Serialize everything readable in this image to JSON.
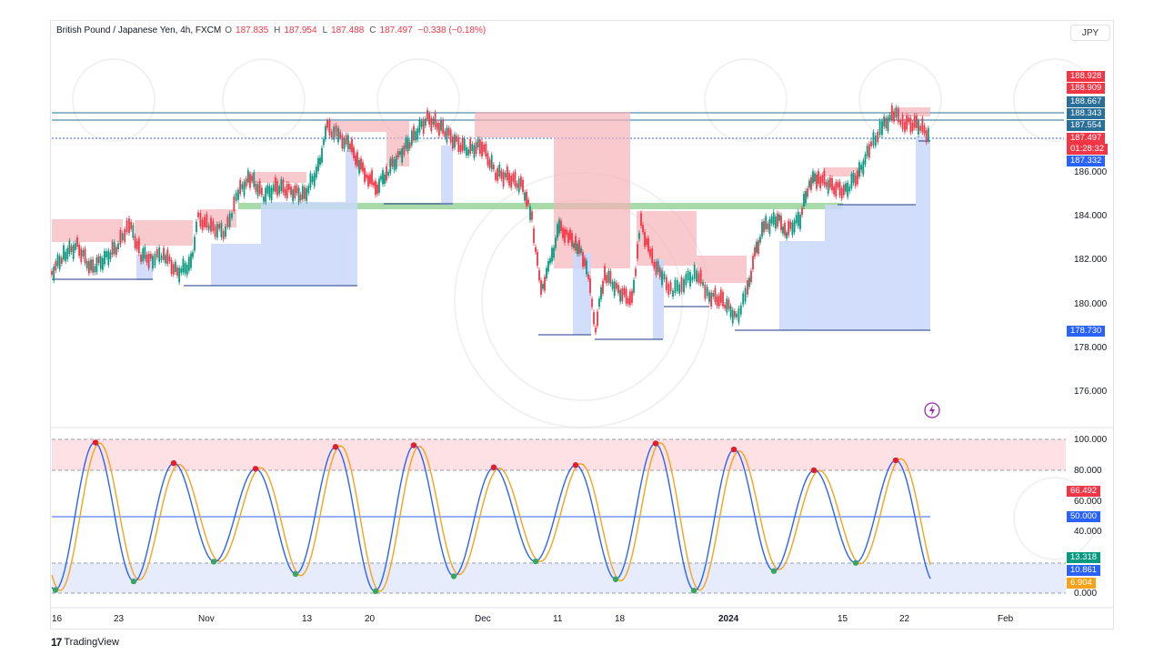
{
  "header": {
    "symbol": "British Pound / Japanese Yen, 4h, FXCM",
    "o_label": "O",
    "o_val": "187.835",
    "h_label": "H",
    "h_val": "187.954",
    "l_label": "L",
    "l_val": "187.488",
    "c_label": "C",
    "c_val": "187.497",
    "change": "−0.338 (−0.18%)"
  },
  "currency_button": "JPY",
  "price_axis": [
    "186.000",
    "184.000",
    "182.000",
    "180.000",
    "178.000",
    "176.000"
  ],
  "price_tags": {
    "t1": "188.928",
    "t2": "188.909",
    "t3": "188.667",
    "t4": "188.343",
    "t5": "187.554",
    "t6": "187.497",
    "t7": "01:28:32",
    "t8": "187.332",
    "t9": "178.730"
  },
  "osc_axis": [
    "100.000",
    "80.000",
    "60.000",
    "40.000",
    "0.000"
  ],
  "osc_tags": {
    "k": "66.492",
    "mid": "50.000",
    "a": "13.318",
    "b": "10.861",
    "c": "6.904"
  },
  "time_axis": [
    "16",
    "23",
    "Nov",
    "13",
    "20",
    "Dec",
    "11",
    "18",
    "2024",
    "15",
    "22",
    "Feb"
  ],
  "branding": "TradingView",
  "colors": {
    "up": "#089981",
    "down": "#f23645",
    "blue": "#2962ff",
    "orange": "#f7a21b"
  }
}
